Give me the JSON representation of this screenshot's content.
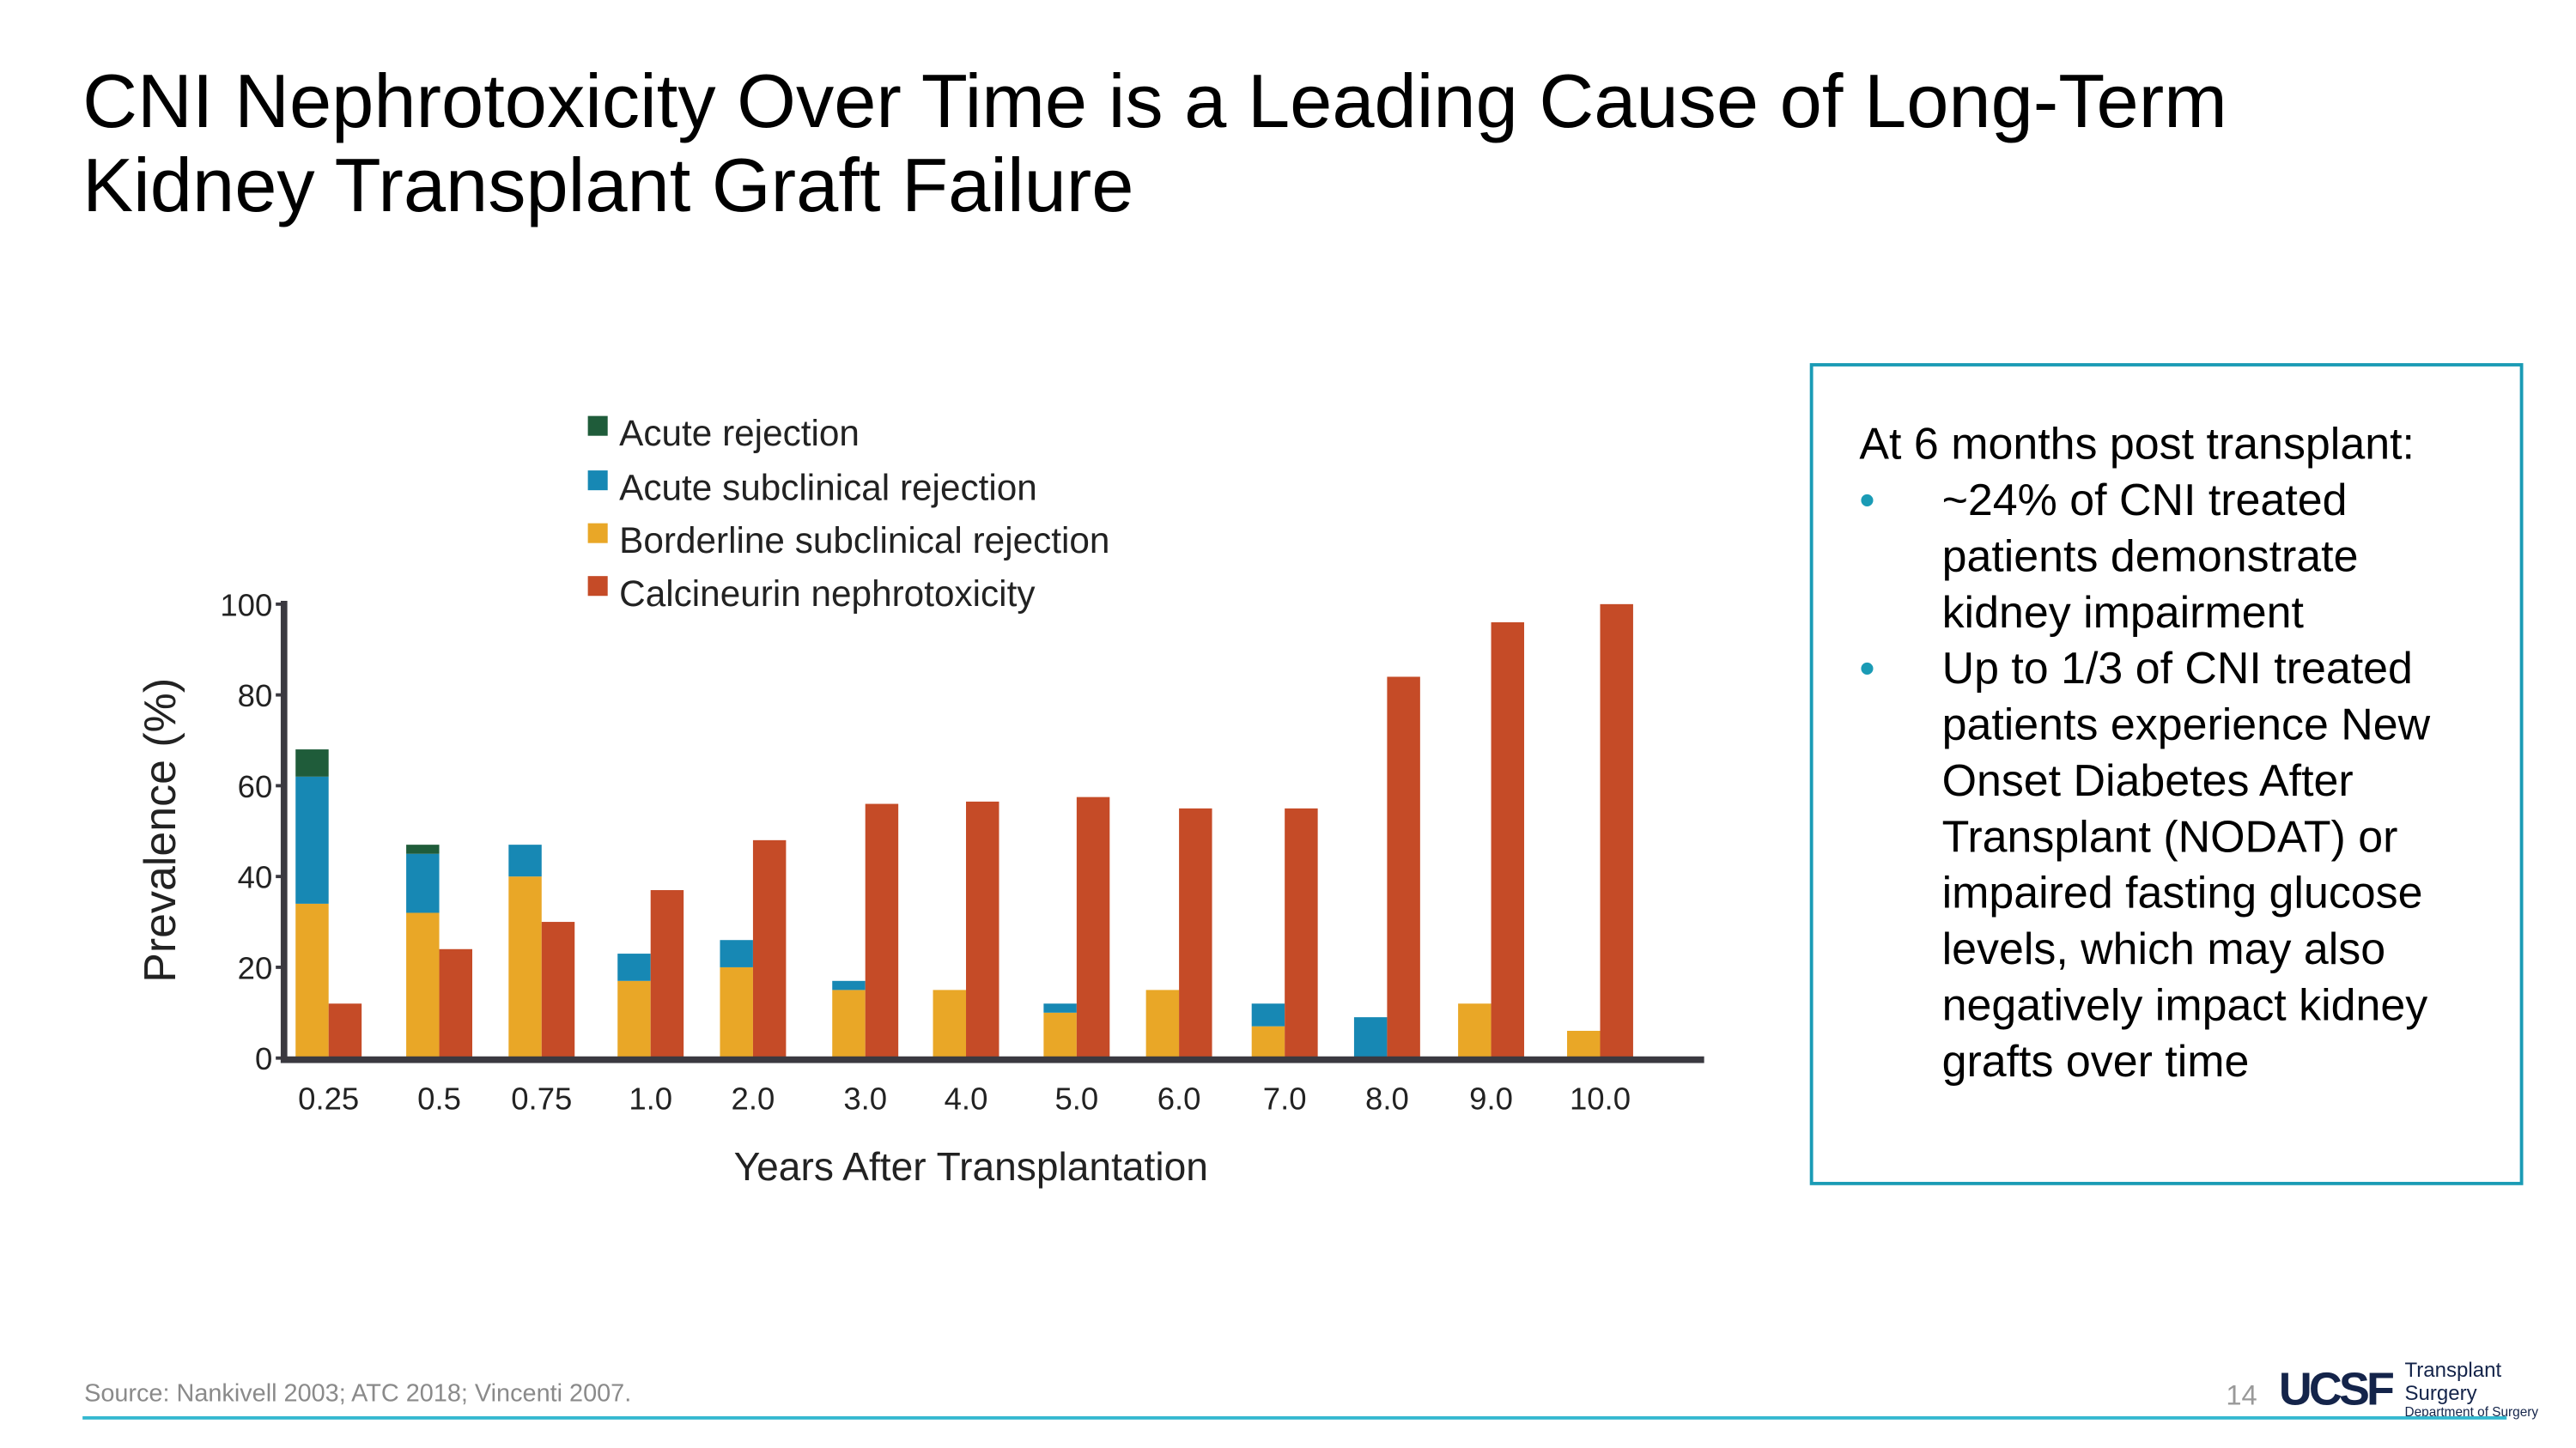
{
  "slide": {
    "title": "CNI Nephrotoxicity Over Time is a Leading Cause of Long-Term Kidney Transplant Graft Failure",
    "source": "Source: Nankivell 2003; ATC 2018; Vincenti 2007.",
    "page_number": "14",
    "logo": {
      "mark": "UCSF",
      "line1": "Transplant Surgery",
      "line2": "Department of Surgery"
    },
    "accent_color": "#1a9bb5"
  },
  "callout": {
    "heading": "At 6 months post transplant:",
    "bullets": [
      "~24% of CNI treated patients demonstrate kidney impairment",
      "Up to 1/3 of CNI treated patients experience New Onset Diabetes After Transplant (NODAT) or impaired fasting glucose levels, which may also negatively impact kidney grafts over time"
    ],
    "bullet_char": "•"
  },
  "chart_data": {
    "type": "bar",
    "stacked_left_bar_with_adjacent_bar": true,
    "xlabel": "Years After Transplantation",
    "ylabel": "Prevalence (%)",
    "ylim": [
      0,
      100
    ],
    "yticks": [
      0,
      20,
      40,
      60,
      80,
      100
    ],
    "grid": false,
    "legend_position": "top",
    "categories": [
      "0.25",
      "0.5",
      "0.75",
      "1.0",
      "2.0",
      "3.0",
      "4.0",
      "5.0",
      "6.0",
      "7.0",
      "8.0",
      "9.0",
      "10.0"
    ],
    "series": [
      {
        "name": "Acute rejection",
        "color": "#1f5c3a",
        "stack": "left",
        "values": [
          6,
          2,
          0,
          0,
          0,
          0,
          0,
          0,
          0,
          0,
          0,
          0,
          0
        ]
      },
      {
        "name": "Acute subclinical rejection",
        "color": "#1788b4",
        "stack": "left",
        "values": [
          28,
          13,
          7,
          6,
          6,
          2,
          0,
          2,
          0,
          5,
          9,
          0,
          0
        ]
      },
      {
        "name": "Borderline subclinical rejection",
        "color": "#e9a727",
        "stack": "left",
        "values": [
          34,
          32,
          40,
          17,
          20,
          15,
          15,
          10,
          15,
          7,
          0,
          12,
          6
        ]
      },
      {
        "name": "Calcineurin nephrotoxicity",
        "color": "#c54b27",
        "stack": "right",
        "values": [
          12,
          24,
          30,
          37,
          48,
          56,
          56.5,
          57.5,
          55,
          55,
          84,
          96,
          100
        ]
      }
    ]
  }
}
